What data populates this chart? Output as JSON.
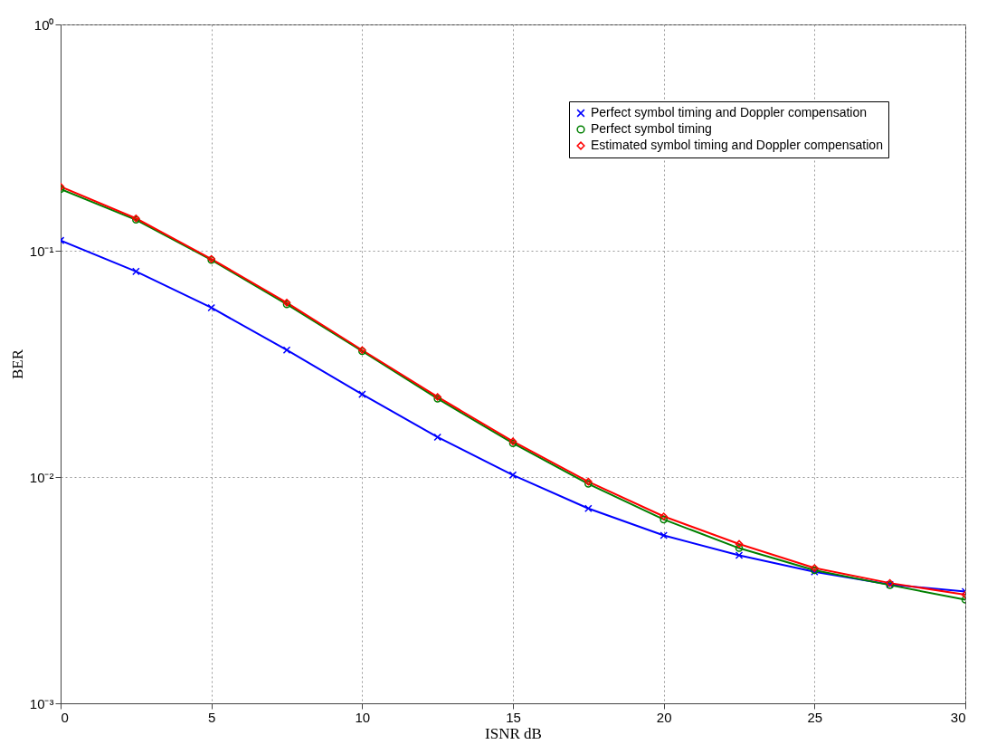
{
  "chart_data": {
    "type": "line",
    "xlabel": "ISNR dB",
    "ylabel": "BER",
    "x": [
      0,
      2.5,
      5,
      7.5,
      10,
      12.5,
      15,
      17.5,
      20,
      22.5,
      25,
      27.5,
      30
    ],
    "series": [
      {
        "name": "Perfect symbol timing and Doppler compensation",
        "color": "#0000ff",
        "marker": "cross",
        "values": [
          0.111,
          0.081,
          0.056,
          0.0364,
          0.0232,
          0.015,
          0.0102,
          0.00726,
          0.00552,
          0.00451,
          0.00381,
          0.00335,
          0.00312
        ]
      },
      {
        "name": "Perfect symbol timing",
        "color": "#007f00",
        "marker": "circle",
        "values": [
          0.187,
          0.137,
          0.091,
          0.058,
          0.036,
          0.0222,
          0.0141,
          0.00933,
          0.00649,
          0.00485,
          0.00387,
          0.00333,
          0.00287
        ]
      },
      {
        "name": "Estimated symbol timing and Doppler compensation",
        "color": "#ff0000",
        "marker": "diamond",
        "values": [
          0.192,
          0.139,
          0.092,
          0.059,
          0.0364,
          0.0226,
          0.01436,
          0.00954,
          0.0067,
          0.00506,
          0.00396,
          0.0034,
          0.00302
        ]
      }
    ],
    "xlim": [
      0,
      30
    ],
    "xticks": [
      0,
      5,
      10,
      15,
      20,
      25,
      30
    ],
    "ylim": [
      0.001,
      1
    ],
    "log": true,
    "yticks": [
      {
        "value": 0.001,
        "label": "10⁻³"
      },
      {
        "value": 0.01,
        "label": "10⁻²"
      },
      {
        "value": 0.1,
        "label": "10⁻¹"
      },
      {
        "value": 1,
        "label": "10⁰"
      }
    ],
    "grid": true,
    "legend": "top right",
    "line_style": "solid"
  }
}
